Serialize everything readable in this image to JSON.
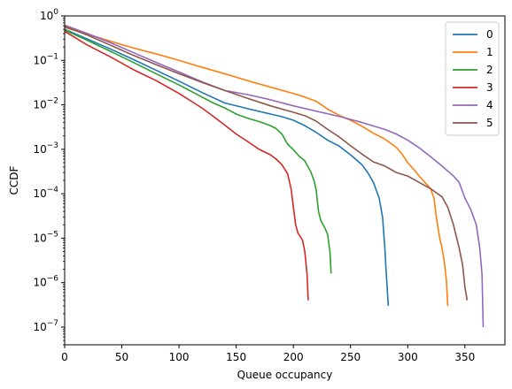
{
  "chart_data": {
    "type": "line",
    "title": "",
    "xlabel": "Queue occupancy",
    "ylabel": "CCDF",
    "xlim": [
      0,
      385
    ],
    "ylim": [
      4e-08,
      1
    ],
    "yscale": "log",
    "grid": false,
    "legend_position": "top-right",
    "x_ticks": [
      0,
      50,
      100,
      150,
      200,
      250,
      300,
      350
    ],
    "y_ticks": [
      {
        "value": 1e-07,
        "base": "10",
        "exp": "−7"
      },
      {
        "value": 1e-06,
        "base": "10",
        "exp": "−6"
      },
      {
        "value": 1e-05,
        "base": "10",
        "exp": "−5"
      },
      {
        "value": 0.0001,
        "base": "10",
        "exp": "−4"
      },
      {
        "value": 0.001,
        "base": "10",
        "exp": "−3"
      },
      {
        "value": 0.01,
        "base": "10",
        "exp": "−2"
      },
      {
        "value": 0.1,
        "base": "10",
        "exp": "−1"
      },
      {
        "value": 1,
        "base": "10",
        "exp": "0"
      }
    ],
    "series": [
      {
        "name": "0",
        "color": "#1f77b4",
        "x": [
          0,
          20,
          40,
          60,
          80,
          100,
          120,
          140,
          160,
          180,
          190,
          200,
          210,
          220,
          230,
          240,
          250,
          255,
          260,
          265,
          270,
          275,
          278,
          280,
          281,
          282,
          283
        ],
        "y": [
          0.5,
          0.3,
          0.18,
          0.105,
          0.06,
          0.034,
          0.019,
          0.011,
          0.0082,
          0.0062,
          0.0054,
          0.0045,
          0.0034,
          0.0024,
          0.0016,
          0.00118,
          0.00075,
          0.00058,
          0.00045,
          0.0003,
          0.00018,
          8e-05,
          3e-05,
          6e-06,
          2e-06,
          8e-07,
          3e-07
        ]
      },
      {
        "name": "1",
        "color": "#ff7f0e",
        "x": [
          0,
          20,
          40,
          60,
          80,
          100,
          120,
          140,
          160,
          180,
          200,
          210,
          220,
          230,
          240,
          250,
          260,
          270,
          280,
          290,
          295,
          300,
          305,
          310,
          315,
          320,
          323,
          325,
          328,
          330,
          332,
          334,
          335
        ],
        "y": [
          0.55,
          0.39,
          0.27,
          0.19,
          0.14,
          0.1,
          0.07,
          0.05,
          0.035,
          0.025,
          0.018,
          0.015,
          0.012,
          0.008,
          0.0058,
          0.0045,
          0.0033,
          0.0023,
          0.0017,
          0.0011,
          0.00078,
          0.0005,
          0.00036,
          0.00025,
          0.00018,
          0.00013,
          8e-05,
          3e-05,
          1e-05,
          6e-06,
          3e-06,
          1e-06,
          3e-07
        ]
      },
      {
        "name": "2",
        "color": "#2ca02c",
        "x": [
          0,
          20,
          40,
          60,
          80,
          100,
          120,
          130,
          140,
          150,
          160,
          170,
          180,
          185,
          190,
          195,
          200,
          205,
          210,
          215,
          218,
          220,
          222,
          224,
          226,
          228,
          230,
          232,
          233
        ],
        "y": [
          0.48,
          0.28,
          0.16,
          0.09,
          0.05,
          0.028,
          0.015,
          0.011,
          0.0085,
          0.0062,
          0.005,
          0.0042,
          0.0034,
          0.0029,
          0.0022,
          0.0013,
          0.00098,
          0.0007,
          0.00055,
          0.00032,
          0.0002,
          0.00012,
          4e-05,
          2.5e-05,
          2e-05,
          1.6e-05,
          1.2e-05,
          5e-06,
          1.6e-06
        ]
      },
      {
        "name": "3",
        "color": "#d62728",
        "x": [
          0,
          20,
          40,
          60,
          80,
          100,
          120,
          130,
          140,
          150,
          160,
          170,
          180,
          185,
          190,
          195,
          198,
          200,
          202,
          204,
          206,
          208,
          210,
          212,
          213
        ],
        "y": [
          0.45,
          0.22,
          0.12,
          0.062,
          0.035,
          0.018,
          0.0085,
          0.0055,
          0.0035,
          0.0022,
          0.0015,
          0.001,
          0.00075,
          0.0006,
          0.00045,
          0.00028,
          0.00013,
          5e-05,
          2e-05,
          1.3e-05,
          1.1e-05,
          9e-06,
          5e-06,
          1.5e-06,
          4e-07
        ]
      },
      {
        "name": "4",
        "color": "#9467bd",
        "x": [
          0,
          20,
          40,
          60,
          80,
          100,
          120,
          140,
          160,
          180,
          200,
          220,
          240,
          260,
          280,
          290,
          300,
          310,
          320,
          330,
          340,
          345,
          350,
          355,
          360,
          363,
          365,
          366
        ],
        "y": [
          0.62,
          0.4,
          0.25,
          0.15,
          0.09,
          0.055,
          0.033,
          0.021,
          0.017,
          0.013,
          0.0095,
          0.0072,
          0.0055,
          0.004,
          0.0028,
          0.0022,
          0.0016,
          0.00108,
          0.00068,
          0.00042,
          0.00025,
          0.00018,
          8e-05,
          4.5e-05,
          2e-05,
          6e-06,
          1.5e-06,
          1e-07
        ]
      },
      {
        "name": "5",
        "color": "#8c564b",
        "x": [
          0,
          20,
          40,
          60,
          80,
          100,
          120,
          140,
          160,
          180,
          200,
          210,
          220,
          230,
          240,
          250,
          260,
          270,
          280,
          290,
          300,
          310,
          320,
          330,
          335,
          340,
          345,
          348,
          350,
          352
        ],
        "y": [
          0.58,
          0.37,
          0.22,
          0.13,
          0.08,
          0.05,
          0.032,
          0.021,
          0.014,
          0.0095,
          0.0068,
          0.0057,
          0.0043,
          0.0028,
          0.0019,
          0.0012,
          0.00078,
          0.00052,
          0.00042,
          0.0003,
          0.00025,
          0.00018,
          0.00013,
          8.5e-05,
          5e-05,
          2e-05,
          6e-06,
          2.5e-06,
          8e-07,
          4e-07
        ]
      }
    ]
  }
}
